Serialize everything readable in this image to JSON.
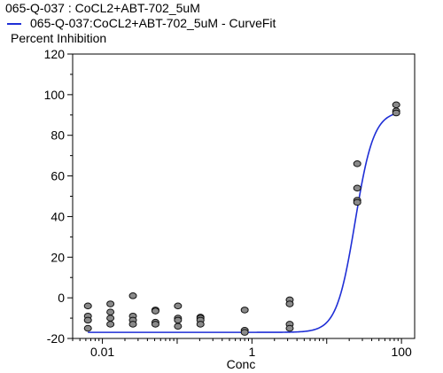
{
  "chart_data": {
    "type": "scatter",
    "title": "065-Q-037  : CoCL2+ABT-702_5uM",
    "legend": [
      {
        "label": "065-Q-037:CoCL2+ABT-702_5uM - CurveFit",
        "color": "#1f2fd6"
      }
    ],
    "ylabel": "Percent  Inhibition",
    "xlabel": "Conc",
    "xscale": "log",
    "xlim": [
      0.004,
      150
    ],
    "ylim": [
      -20,
      120
    ],
    "yticks": [
      -20,
      0,
      20,
      40,
      60,
      80,
      100,
      120
    ],
    "xticks": [
      {
        "value": 0.01,
        "label": "0.01"
      },
      {
        "value": 1,
        "label": "1"
      },
      {
        "value": 100,
        "label": "100"
      }
    ],
    "grid": false,
    "point_color": "#8a8a8a",
    "curve_color": "#1f2fd6",
    "points": [
      {
        "x": 0.0064,
        "y": -4
      },
      {
        "x": 0.0064,
        "y": -9
      },
      {
        "x": 0.0064,
        "y": -11
      },
      {
        "x": 0.0064,
        "y": -15
      },
      {
        "x": 0.0128,
        "y": -3
      },
      {
        "x": 0.0128,
        "y": -7
      },
      {
        "x": 0.0128,
        "y": -10
      },
      {
        "x": 0.0128,
        "y": -13
      },
      {
        "x": 0.0256,
        "y": 1
      },
      {
        "x": 0.0256,
        "y": -9
      },
      {
        "x": 0.0256,
        "y": -11
      },
      {
        "x": 0.0256,
        "y": -13
      },
      {
        "x": 0.0512,
        "y": -6
      },
      {
        "x": 0.0512,
        "y": -6.5
      },
      {
        "x": 0.0512,
        "y": -12
      },
      {
        "x": 0.0512,
        "y": -13
      },
      {
        "x": 0.1024,
        "y": -4
      },
      {
        "x": 0.1024,
        "y": -10
      },
      {
        "x": 0.1024,
        "y": -11
      },
      {
        "x": 0.1024,
        "y": -14
      },
      {
        "x": 0.2048,
        "y": -9.5
      },
      {
        "x": 0.2048,
        "y": -10
      },
      {
        "x": 0.2048,
        "y": -11
      },
      {
        "x": 0.2048,
        "y": -13
      },
      {
        "x": 0.8,
        "y": -6
      },
      {
        "x": 0.8,
        "y": -16
      },
      {
        "x": 0.8,
        "y": -17
      },
      {
        "x": 3.2,
        "y": -1
      },
      {
        "x": 3.2,
        "y": -3
      },
      {
        "x": 3.2,
        "y": -13
      },
      {
        "x": 3.2,
        "y": -15
      },
      {
        "x": 25.6,
        "y": 66
      },
      {
        "x": 25.6,
        "y": 54
      },
      {
        "x": 25.6,
        "y": 48
      },
      {
        "x": 25.6,
        "y": 47
      },
      {
        "x": 85,
        "y": 95
      },
      {
        "x": 85,
        "y": 92
      },
      {
        "x": 85,
        "y": 91
      }
    ],
    "curve": {
      "bottom": -17,
      "top": 92,
      "ec50": 24,
      "hill": 3.5
    }
  }
}
